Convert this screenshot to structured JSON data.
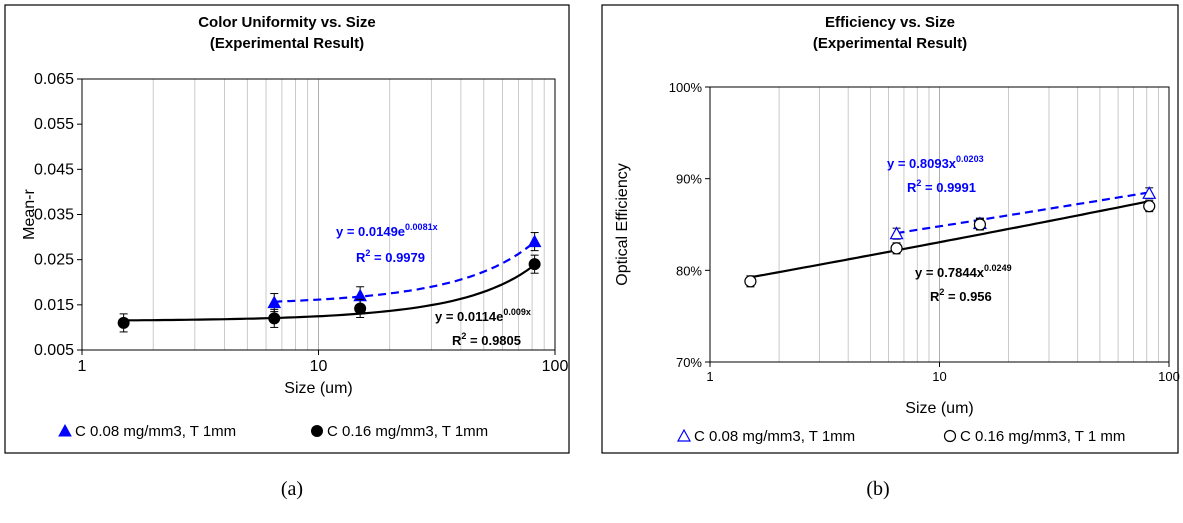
{
  "panels": [
    {
      "label": "(a)"
    },
    {
      "label": "(b)"
    }
  ],
  "chart_data": [
    {
      "type": "scatter",
      "title": "Color Uniformity vs. Size",
      "subtitle": "(Experimental Result)",
      "xlabel": "Size (um)",
      "ylabel": "Mean-r",
      "xscale": "log",
      "xlim": [
        1,
        100
      ],
      "ylim": [
        0.005,
        0.065
      ],
      "xticks": [
        "1",
        "10",
        "100"
      ],
      "yticks": [
        "0.065",
        "0.055",
        "0.045",
        "0.035",
        "0.025",
        "0.015",
        "0.005"
      ],
      "grid": "vertical minor",
      "legend_position": "bottom",
      "series": [
        {
          "name": "C 0.08 mg/mm3, T 1mm",
          "marker": "filled-triangle",
          "color": "#0000ff",
          "x": [
            6.5,
            15,
            82
          ],
          "y": [
            0.0155,
            0.017,
            0.029
          ],
          "err": [
            0.002,
            0.002,
            0.002
          ],
          "fit": {
            "type": "exponential",
            "a": 0.0149,
            "b": 0.0081,
            "x_range": [
              6.5,
              82
            ],
            "style": "dashed",
            "equation": "y = 0.0149e",
            "exponent": "0.0081x",
            "r2_prefix": "R",
            "r2_sup": "2",
            "r2_value": " = 0.9979"
          }
        },
        {
          "name": "C 0.16 mg/mm3, T 1mm",
          "marker": "filled-circle",
          "color": "#000000",
          "x": [
            1.5,
            6.5,
            15,
            82
          ],
          "y": [
            0.011,
            0.012,
            0.0142,
            0.024
          ],
          "err": [
            0.002,
            0.002,
            0.002,
            0.002
          ],
          "fit": {
            "type": "exponential",
            "a": 0.0114,
            "b": 0.009,
            "x_range": [
              1.5,
              82
            ],
            "style": "solid",
            "equation": "y = 0.0114e",
            "exponent": "0.009x",
            "r2_prefix": "R",
            "r2_sup": "2",
            "r2_value": " = 0.9805"
          }
        }
      ]
    },
    {
      "type": "scatter",
      "title": "Efficiency vs. Size",
      "subtitle": "(Experimental Result)",
      "xlabel": "Size (um)",
      "ylabel": "Optical Efficiency",
      "xscale": "log",
      "xlim": [
        1,
        100
      ],
      "ylim": [
        0.7,
        1.0
      ],
      "xticks": [
        "1",
        "10",
        "100"
      ],
      "yticks": [
        "100%",
        "90%",
        "80%",
        "70%"
      ],
      "grid": "vertical minor",
      "legend_position": "bottom",
      "series": [
        {
          "name": "C 0.08 mg/mm3, T 1mm",
          "marker": "open-triangle",
          "color": "#0000ff",
          "x": [
            6.5,
            15,
            82
          ],
          "y": [
            0.84,
            0.851,
            0.884
          ],
          "err": [
            0.006,
            0.006,
            0.006
          ],
          "fit": {
            "type": "power",
            "a": 0.8093,
            "b": 0.0203,
            "x_range": [
              6.5,
              82
            ],
            "style": "dashed",
            "equation": "y = 0.8093x",
            "exponent": "0.0203",
            "r2_prefix": "R",
            "r2_sup": "2",
            "r2_value": " = 0.9991"
          }
        },
        {
          "name": "C 0.16 mg/mm3, T 1 mm",
          "marker": "open-circle",
          "color": "#000000",
          "x": [
            1.5,
            6.5,
            15,
            82
          ],
          "y": [
            0.788,
            0.824,
            0.85,
            0.87
          ],
          "err": [
            0.006,
            0.006,
            0.006,
            0.006
          ],
          "fit": {
            "type": "power",
            "a": 0.7844,
            "b": 0.0249,
            "x_range": [
              1.5,
              82
            ],
            "style": "solid",
            "equation": "y = 0.7844x",
            "exponent": "0.0249",
            "r2_prefix": "R",
            "r2_sup": "2",
            "r2_value": " = 0.956"
          }
        }
      ]
    }
  ]
}
